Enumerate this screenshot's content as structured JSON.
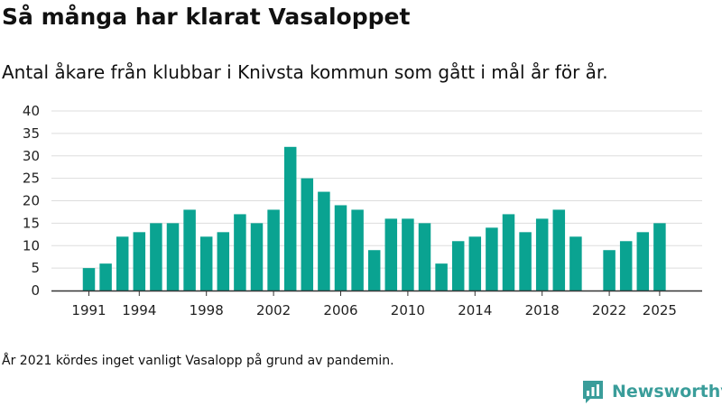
{
  "header": {
    "title": "Så många har klarat Vasaloppet",
    "subtitle": "Antal åkare från klubbar i Knivsta kommun som gått i mål år för år."
  },
  "footnote": "År 2021 kördes inget vanligt Vasalopp på grund av pandemin.",
  "brand": {
    "name": "Newsworthy",
    "icon": "bar-chart-logo-icon",
    "color": "#3a9d9a"
  },
  "colors": {
    "bar": "#0aa391",
    "grid": "#dddddd",
    "axis": "#333333"
  },
  "chart_data": {
    "type": "bar",
    "title": "Så många har klarat Vasaloppet",
    "xlabel": "",
    "ylabel": "",
    "ylim": [
      0,
      40
    ],
    "yticks": [
      0,
      5,
      10,
      15,
      20,
      25,
      30,
      35,
      40
    ],
    "xtick_labels": [
      "1991",
      "1994",
      "1998",
      "2002",
      "2006",
      "2010",
      "2014",
      "2018",
      "2022",
      "2025"
    ],
    "grid": true,
    "categories": [
      "1991",
      "1992",
      "1993",
      "1994",
      "1995",
      "1996",
      "1997",
      "1998",
      "1999",
      "2000",
      "2001",
      "2002",
      "2003",
      "2004",
      "2005",
      "2006",
      "2007",
      "2008",
      "2009",
      "2010",
      "2011",
      "2012",
      "2013",
      "2014",
      "2015",
      "2016",
      "2017",
      "2018",
      "2019",
      "2020",
      "2021",
      "2022",
      "2023",
      "2024",
      "2025"
    ],
    "values": [
      5,
      6,
      12,
      13,
      15,
      15,
      18,
      12,
      13,
      17,
      15,
      18,
      32,
      25,
      22,
      19,
      18,
      9,
      16,
      16,
      15,
      6,
      11,
      12,
      14,
      17,
      13,
      16,
      18,
      12,
      0,
      9,
      11,
      13,
      15
    ]
  }
}
